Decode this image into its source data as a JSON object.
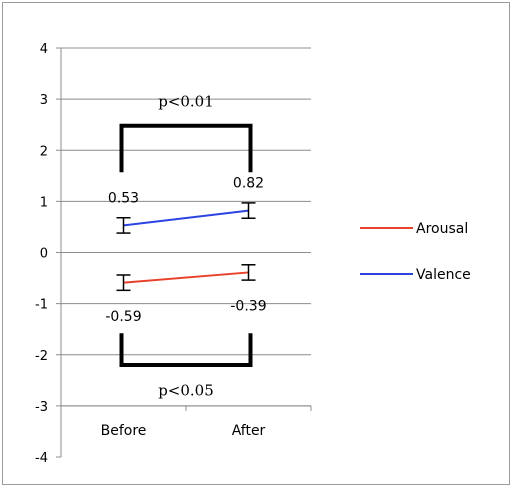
{
  "chart_data": {
    "type": "line",
    "title": "",
    "xlabel": "",
    "ylabel": "",
    "categories": [
      "Before",
      "After"
    ],
    "ylim": [
      -4,
      4
    ],
    "yticks": [
      4,
      3,
      2,
      1,
      0,
      -1,
      -2,
      -3,
      -4
    ],
    "grid": true,
    "legend_position": "right",
    "series": [
      {
        "name": "Arousal",
        "color": "#e8412c",
        "values": [
          -0.59,
          -0.39
        ],
        "error": [
          0.15,
          0.15
        ],
        "labels": [
          "-0.59",
          "-0.39"
        ]
      },
      {
        "name": "Valence",
        "color": "#2b44e0",
        "values": [
          0.53,
          0.82
        ],
        "error": [
          0.15,
          0.15
        ],
        "labels": [
          "0.53",
          "0.82"
        ]
      }
    ],
    "annotations": [
      {
        "text": "p<0.01",
        "series": "Valence"
      },
      {
        "text": "p<0.05",
        "series": "Arousal"
      }
    ]
  }
}
